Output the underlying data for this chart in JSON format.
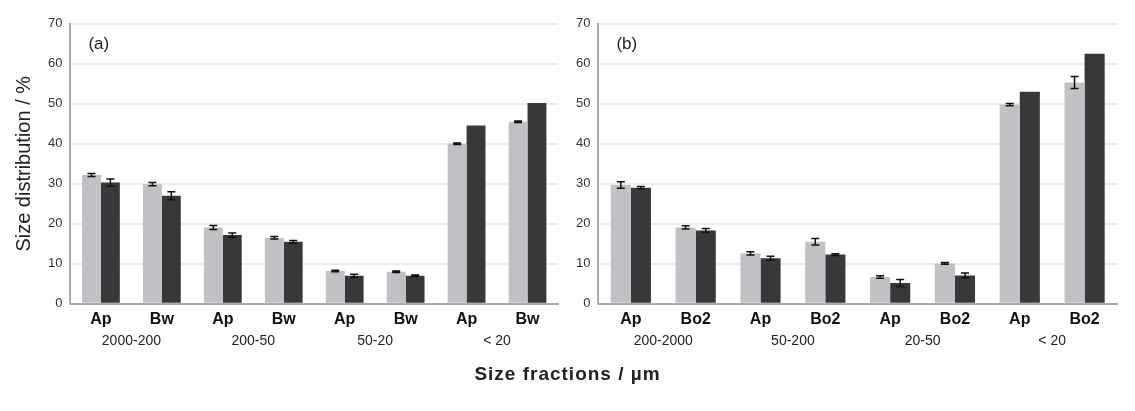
{
  "chart_data": [
    {
      "type": "bar",
      "title": "(a)",
      "ylabel": "Size distribution / %",
      "xlabel": "Size fractions / µm",
      "categories": [
        "Ap",
        "Bw",
        "Ap",
        "Bw",
        "Ap",
        "Bw",
        "Ap",
        "Bw"
      ],
      "annotations": [
        "2000-200",
        "200-50",
        "50-20",
        "< 20"
      ],
      "series": [
        {
          "color": "#c0c1c4",
          "values": [
            32.2,
            29.9,
            19.1,
            16.5,
            8.2,
            8.0,
            40.0,
            45.5
          ],
          "errors": [
            0.4,
            0.4,
            0.5,
            0.3,
            0.2,
            0.2,
            0.2,
            0.2
          ]
        },
        {
          "color": "#38383a",
          "values": [
            30.3,
            27.0,
            17.2,
            15.5,
            7.0,
            7.0,
            44.6,
            50.2
          ],
          "errors": [
            0.9,
            1.0,
            0.5,
            0.3,
            0.4,
            0.2,
            null,
            null
          ]
        }
      ],
      "ylim": [
        0,
        70
      ],
      "yticks": [
        0,
        10,
        20,
        30,
        40,
        50,
        60,
        70
      ],
      "grid": "y",
      "legend": false
    },
    {
      "type": "bar",
      "title": "(b)",
      "categories": [
        "Ap",
        "Bo2",
        "Ap",
        "Bo2",
        "Ap",
        "Bo2",
        "Ap",
        "Bo2"
      ],
      "annotations": [
        "200-2000",
        "50-200",
        "20-50",
        "< 20"
      ],
      "series": [
        {
          "color": "#c0c1c4",
          "values": [
            29.7,
            19.1,
            12.6,
            15.5,
            6.7,
            10.1,
            49.8,
            55.3
          ],
          "errors": [
            0.8,
            0.4,
            0.4,
            0.8,
            0.3,
            0.2,
            0.3,
            1.5
          ]
        },
        {
          "color": "#38383a",
          "values": [
            29.0,
            18.3,
            11.4,
            12.3,
            5.2,
            7.1,
            53.0,
            62.5
          ],
          "errors": [
            0.3,
            0.5,
            0.5,
            0.2,
            0.9,
            0.6,
            null,
            null
          ]
        }
      ],
      "ylim": [
        0,
        70
      ],
      "yticks": [
        0,
        10,
        20,
        30,
        40,
        50,
        60,
        70
      ],
      "grid": "y",
      "legend": false
    }
  ]
}
